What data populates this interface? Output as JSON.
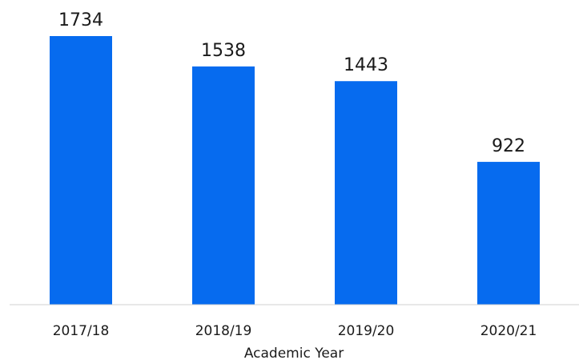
{
  "chart_data": {
    "type": "bar",
    "categories": [
      "2017/18",
      "2018/19",
      "2019/20",
      "2020/21"
    ],
    "values": [
      1734,
      1538,
      1443,
      922
    ],
    "title": "",
    "xlabel": "Academic Year",
    "ylabel": "",
    "ylim": [
      0,
      1734
    ],
    "data_labels": [
      "1734",
      "1538",
      "1443",
      "922"
    ],
    "grid": false,
    "legend": "none",
    "colors": {
      "bar": "#066BEF",
      "axis": "#d0d0d0",
      "text": "#1a1a1a"
    }
  }
}
